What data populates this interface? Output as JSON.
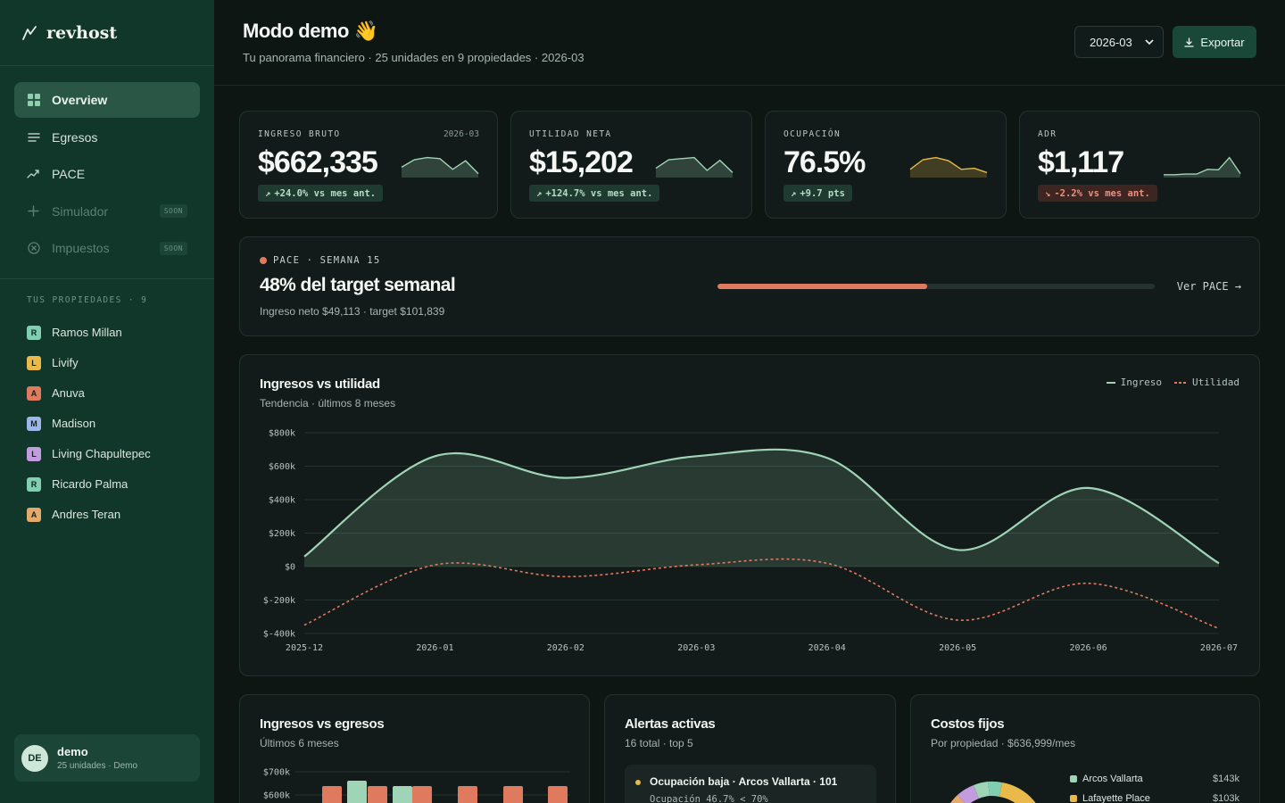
{
  "brand": {
    "name": "revhost"
  },
  "nav": [
    {
      "label": "Overview",
      "icon": "grid-icon",
      "active": true
    },
    {
      "label": "Egresos",
      "icon": "list-icon"
    },
    {
      "label": "PACE",
      "icon": "trend-icon"
    },
    {
      "label": "Simulador",
      "icon": "plus-icon",
      "badge": "SOON"
    },
    {
      "label": "Impuestos",
      "icon": "x-circle-icon",
      "badge": "SOON"
    }
  ],
  "properties": {
    "title": "TUS PROPIEDADES · 9",
    "items": [
      {
        "initial": "R",
        "name": "Ramos Millan",
        "color": "#7fcfb0"
      },
      {
        "initial": "L",
        "name": "Livify",
        "color": "#e9b949"
      },
      {
        "initial": "A",
        "name": "Anuva",
        "color": "#e07a5f"
      },
      {
        "initial": "M",
        "name": "Madison",
        "color": "#9db8e8"
      },
      {
        "initial": "L",
        "name": "Living Chapultepec",
        "color": "#c39bdf"
      },
      {
        "initial": "R",
        "name": "Ricardo Palma",
        "color": "#7fcfb0"
      },
      {
        "initial": "A",
        "name": "Andres Teran",
        "color": "#e5a96a"
      }
    ]
  },
  "user": {
    "initials": "DE",
    "name": "demo",
    "subtitle": "25 unidades · Demo"
  },
  "header": {
    "title": "Modo demo 👋",
    "subtitle": "Tu panorama financiero · 25 unidades en 9 propiedades · 2026-03",
    "month": "2026-03",
    "export_label": "Exportar"
  },
  "kpis": [
    {
      "label": "INGRESO BRUTO",
      "date": "2026-03",
      "value": "$662,335",
      "delta": "+24.0% vs mes ant.",
      "trend": "up",
      "color": "#9fd4b6",
      "spark": [
        0.4,
        0.75,
        0.85,
        0.8,
        0.3,
        0.7,
        0.1
      ]
    },
    {
      "label": "UTILIDAD NETA",
      "date": "",
      "value": "$15,202",
      "delta": "+124.7% vs mes ant.",
      "trend": "up",
      "color": "#9fd4b6",
      "spark": [
        0.35,
        0.75,
        0.8,
        0.85,
        0.25,
        0.72,
        0.15
      ]
    },
    {
      "label": "OCUPACIÓN",
      "date": "",
      "value": "76.5%",
      "delta": "+9.7 pts",
      "trend": "up",
      "color": "#e9b949",
      "spark": [
        0.3,
        0.75,
        0.85,
        0.7,
        0.3,
        0.35,
        0.15
      ]
    },
    {
      "label": "ADR",
      "date": "",
      "value": "$1,117",
      "delta": "-2.2% vs mes ant.",
      "trend": "down",
      "color": "#9fd4b6",
      "spark": [
        0.05,
        0.05,
        0.08,
        0.08,
        0.3,
        0.28,
        0.85,
        0.1
      ]
    }
  ],
  "pace": {
    "tag": "PACE · SEMANA 15",
    "title": "48% del target semanal",
    "subtitle": "Ingreso neto $49,113 · target $101,839",
    "progress": 0.48,
    "link": "Ver PACE →"
  },
  "trend_chart": {
    "title": "Ingresos vs utilidad",
    "subtitle": "Tendencia · últimos 8 meses",
    "legend": [
      "Ingreso",
      "Utilidad"
    ]
  },
  "chart_data": [
    {
      "type": "line",
      "x": [
        "2025-12",
        "2026-01",
        "2026-02",
        "2026-03",
        "2026-04",
        "2026-05",
        "2026-06",
        "2026-07"
      ],
      "yticks": [
        "$800k",
        "$600k",
        "$400k",
        "$200k",
        "$0",
        "$-200k",
        "$-400k"
      ],
      "ylim": [
        -400000,
        800000
      ],
      "series": [
        {
          "name": "Ingreso",
          "values": [
            60000,
            660000,
            530000,
            660000,
            650000,
            100000,
            470000,
            20000
          ],
          "color": "#9fd4b6",
          "style": "area"
        },
        {
          "name": "Utilidad",
          "values": [
            -350000,
            10000,
            -60000,
            10000,
            20000,
            -320000,
            -100000,
            -370000
          ],
          "color": "#e07a5f",
          "style": "dashed"
        }
      ],
      "grid": true,
      "legend_position": "top-right"
    },
    {
      "type": "bar",
      "yticks": [
        "$700k",
        "$600k"
      ],
      "series": [
        {
          "name": "Ingresos",
          "color": "#9fd4b6"
        },
        {
          "name": "Egresos",
          "color": "#e07a5f"
        }
      ]
    }
  ],
  "bars_card": {
    "title": "Ingresos vs egresos",
    "subtitle": "Últimos 6 meses"
  },
  "alerts": {
    "title": "Alertas activas",
    "subtitle": "16 total · top 5",
    "first": {
      "title": "Ocupación baja · Arcos Vallarta · 101",
      "detail": "Ocupación 46.7% < 70%"
    }
  },
  "costs": {
    "title": "Costos fijos",
    "subtitle": "Por propiedad · $636,999/mes",
    "items": [
      {
        "name": "Arcos Vallarta",
        "value": "$143k",
        "color": "#9fd4b6"
      },
      {
        "name": "Lafayette Place",
        "value": "$103k",
        "color": "#e9b949"
      }
    ]
  }
}
